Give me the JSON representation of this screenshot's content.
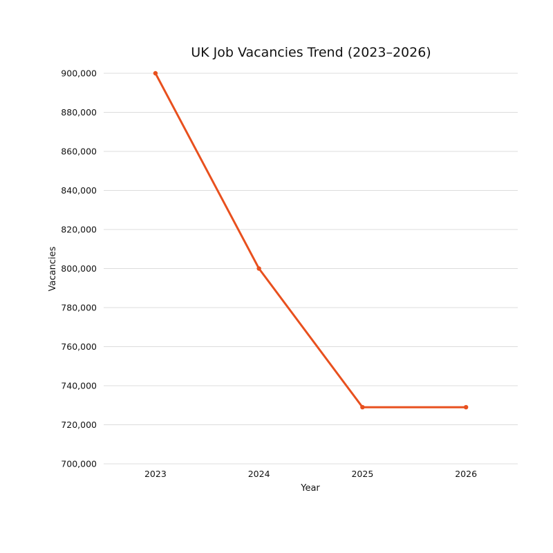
{
  "chart_data": {
    "type": "line",
    "title": "UK Job Vacancies Trend (2023–2026)",
    "xlabel": "Year",
    "ylabel": "Vacancies",
    "categories": [
      "2023",
      "2024",
      "2025",
      "2026"
    ],
    "series": [
      {
        "name": "Vacancies",
        "values": [
          900000,
          800000,
          729000,
          729000
        ],
        "color": "#E8501E"
      }
    ],
    "ylim": [
      700000,
      900000
    ],
    "y_ticks": [
      700000,
      720000,
      740000,
      760000,
      780000,
      800000,
      820000,
      840000,
      860000,
      880000,
      900000
    ],
    "y_tick_labels": [
      "700,000",
      "720,000",
      "740,000",
      "760,000",
      "780,000",
      "800,000",
      "820,000",
      "840,000",
      "860,000",
      "880,000",
      "900,000"
    ],
    "grid": true,
    "legend": "none"
  },
  "colors": {
    "series": "#E8501E",
    "grid": "#dcdcdc",
    "text": "#111111",
    "background": "#ffffff"
  }
}
